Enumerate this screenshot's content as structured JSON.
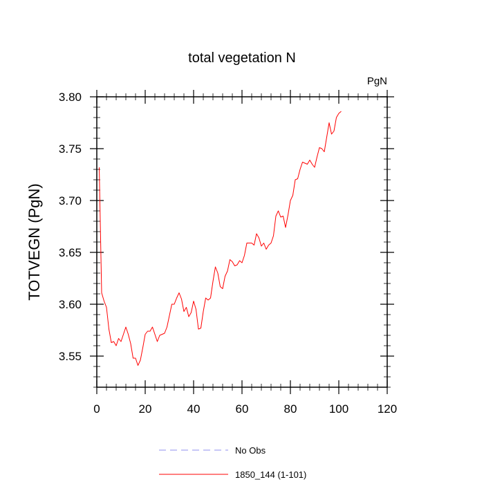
{
  "chart_data": {
    "type": "line",
    "title": "total vegetation N",
    "units_label": "PgN",
    "xlabel": "",
    "ylabel": "TOTVEGN  (PgN)",
    "xlim": [
      0,
      120
    ],
    "ylim": [
      3.52,
      3.8
    ],
    "xticks": [
      0,
      20,
      40,
      60,
      80,
      100,
      120
    ],
    "xtick_labels": [
      "0",
      "20",
      "40",
      "60",
      "80",
      "100",
      "120"
    ],
    "yticks": [
      3.55,
      3.6,
      3.65,
      3.7,
      3.75,
      3.8
    ],
    "ytick_labels": [
      "3.55",
      "3.60",
      "3.65",
      "3.70",
      "3.75",
      "3.80"
    ],
    "grid": false,
    "legend_position": "bottom-center",
    "series": [
      {
        "name": "1850_144 (1-101)",
        "color": "#ff0000",
        "style": "solid",
        "x": [
          1,
          2,
          3,
          4,
          5,
          6,
          7,
          8,
          9,
          10,
          11,
          12,
          13,
          14,
          15,
          16,
          17,
          18,
          19,
          20,
          21,
          22,
          23,
          24,
          25,
          26,
          27,
          28,
          29,
          30,
          31,
          32,
          33,
          34,
          35,
          36,
          37,
          38,
          39,
          40,
          41,
          42,
          43,
          44,
          45,
          46,
          47,
          48,
          49,
          50,
          51,
          52,
          53,
          54,
          55,
          56,
          57,
          58,
          59,
          60,
          61,
          62,
          63,
          64,
          65,
          66,
          67,
          68,
          69,
          70,
          71,
          72,
          73,
          74,
          75,
          76,
          77,
          78,
          79,
          80,
          81,
          82,
          83,
          84,
          85,
          86,
          87,
          88,
          89,
          90,
          91,
          92,
          93,
          94,
          95,
          96,
          97,
          98,
          99,
          100,
          101
        ],
        "values": [
          3.732,
          3.611,
          3.603,
          3.597,
          3.576,
          3.563,
          3.564,
          3.56,
          3.567,
          3.564,
          3.571,
          3.578,
          3.571,
          3.562,
          3.548,
          3.548,
          3.541,
          3.546,
          3.558,
          3.571,
          3.574,
          3.574,
          3.578,
          3.571,
          3.564,
          3.57,
          3.571,
          3.572,
          3.578,
          3.589,
          3.6,
          3.6,
          3.606,
          3.611,
          3.605,
          3.593,
          3.597,
          3.588,
          3.592,
          3.603,
          3.595,
          3.576,
          3.577,
          3.593,
          3.606,
          3.604,
          3.606,
          3.622,
          3.636,
          3.63,
          3.617,
          3.615,
          3.627,
          3.632,
          3.643,
          3.641,
          3.637,
          3.638,
          3.642,
          3.64,
          3.647,
          3.659,
          3.659,
          3.659,
          3.657,
          3.668,
          3.664,
          3.656,
          3.659,
          3.653,
          3.657,
          3.659,
          3.666,
          3.685,
          3.69,
          3.684,
          3.685,
          3.674,
          3.686,
          3.7,
          3.705,
          3.72,
          3.721,
          3.73,
          3.737,
          3.736,
          3.735,
          3.739,
          3.735,
          3.732,
          3.742,
          3.751,
          3.75,
          3.747,
          3.761,
          3.775,
          3.764,
          3.767,
          3.78,
          3.784,
          3.786
        ]
      }
    ],
    "legend": [
      {
        "label": "No Obs",
        "color": "#8f8fef",
        "style": "dashed"
      },
      {
        "label": "1850_144 (1-101)",
        "color": "#ff0000",
        "style": "solid"
      }
    ]
  }
}
